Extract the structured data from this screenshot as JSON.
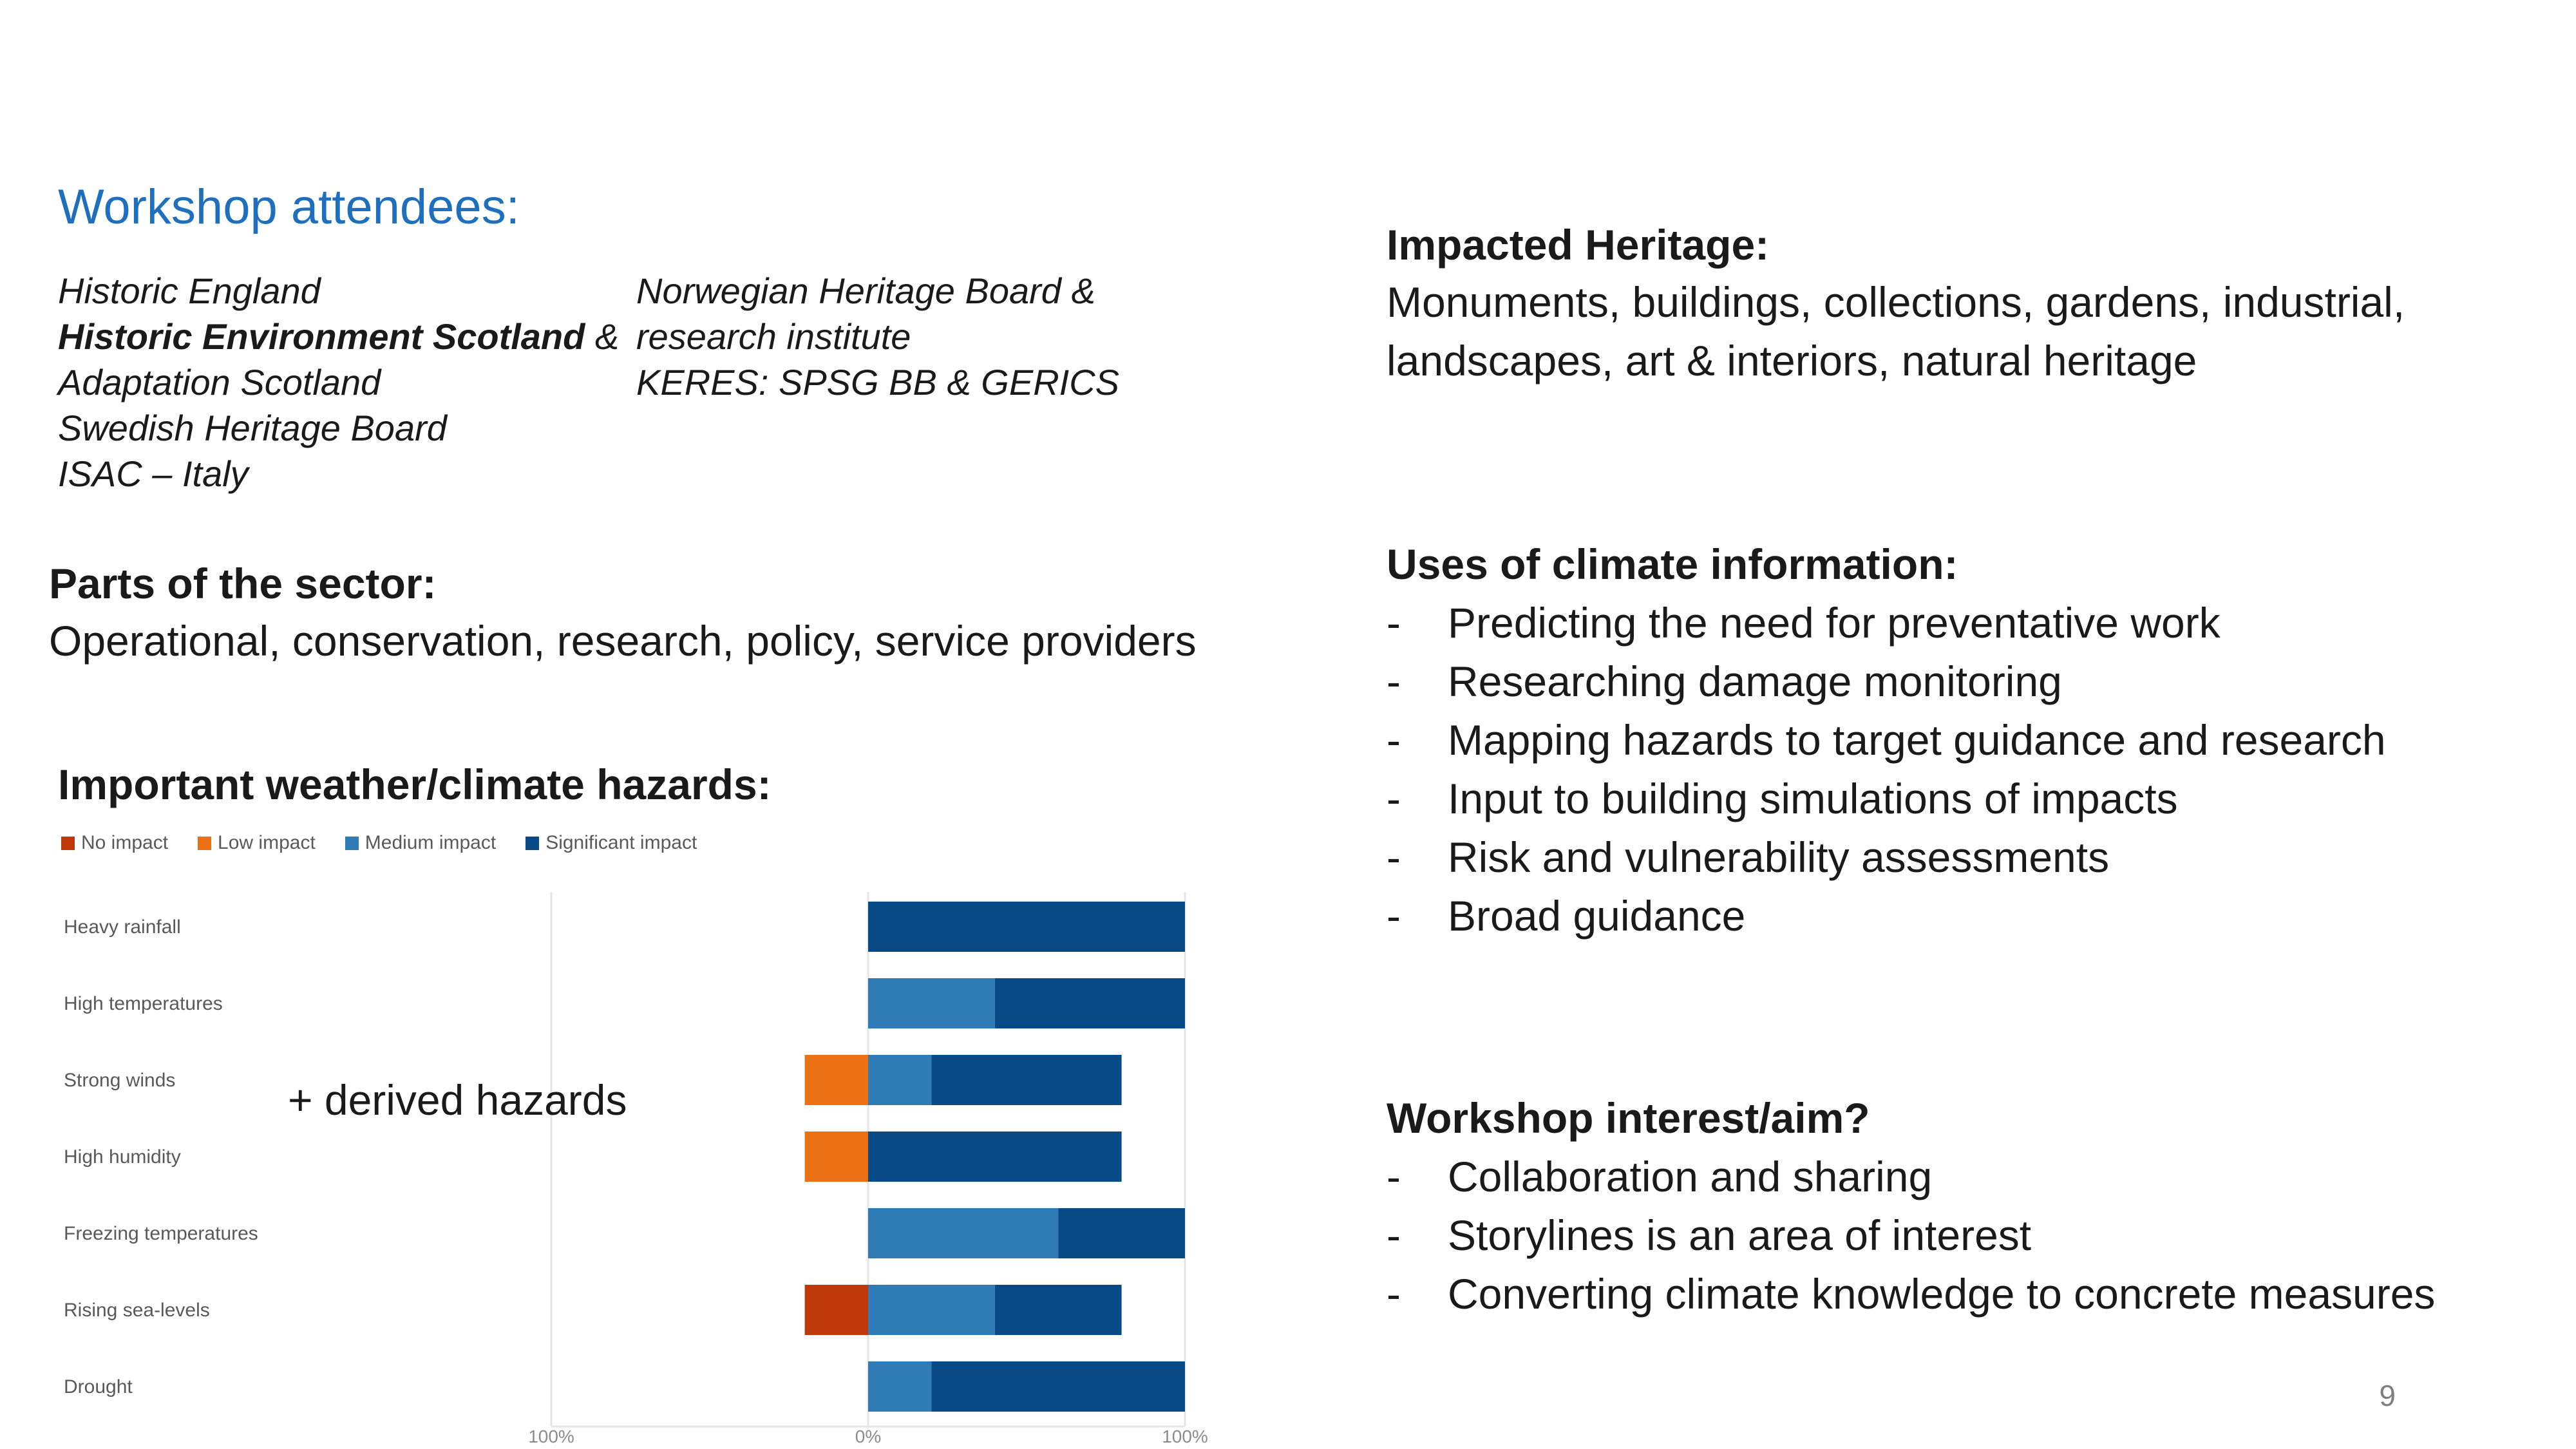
{
  "attendees": {
    "title": "Workshop attendees:",
    "col1": {
      "line1": "Historic England",
      "line2_bold": "Historic Environment Scotland",
      "line2_rest": " &",
      "line3": "Adaptation Scotland",
      "line4": "Swedish Heritage Board",
      "line5": "ISAC – Italy"
    },
    "col2": {
      "line1": "Norwegian Heritage Board &",
      "line2": "research institute",
      "line3": "KERES: SPSG BB & GERICS"
    }
  },
  "sector": {
    "heading": "Parts of the sector:",
    "text": "Operational, conservation, research, policy, service providers"
  },
  "hazards": {
    "heading": "Important weather/climate hazards:",
    "annotation": "+ derived hazards"
  },
  "impacted": {
    "heading": "Impacted Heritage:",
    "line1": "Monuments, buildings, collections, gardens, industrial,",
    "line2": "landscapes, art & interiors, natural heritage"
  },
  "uses": {
    "heading": "Uses of climate information:",
    "items": [
      "Predicting the need for preventative work",
      "Researching damage monitoring",
      "Mapping hazards to target guidance and research",
      "Input to building simulations of impacts",
      "Risk and vulnerability assessments",
      "Broad guidance"
    ]
  },
  "aim": {
    "heading": "Workshop interest/aim?",
    "items": [
      "Collaboration and sharing",
      "Storylines is an area of interest",
      "Converting climate knowledge to concrete measures"
    ]
  },
  "bullet_dash": "-",
  "page_number": "9",
  "chart_data": {
    "type": "bar",
    "orientation": "horizontal",
    "stacked": "diverging",
    "categories": [
      "Heavy rainfall",
      "High temperatures",
      "Strong winds",
      "High humidity",
      "Freezing temperatures",
      "Rising sea-levels",
      "Drought"
    ],
    "series": [
      {
        "name": "No impact",
        "color": "#c0390b",
        "values": [
          0,
          0,
          0,
          0,
          0,
          20,
          0
        ]
      },
      {
        "name": "Low impact",
        "color": "#ec7014",
        "values": [
          0,
          0,
          20,
          20,
          0,
          0,
          0
        ]
      },
      {
        "name": "Medium impact",
        "color": "#2e7bb6",
        "values": [
          0,
          40,
          20,
          0,
          60,
          40,
          20
        ]
      },
      {
        "name": "Significant impact",
        "color": "#084a85",
        "values": [
          100,
          60,
          60,
          80,
          40,
          40,
          80
        ]
      }
    ],
    "negative_series": [
      "No impact",
      "Low impact"
    ],
    "xlim": [
      -100,
      100
    ],
    "xtick_labels": [
      "100%",
      "0%",
      "100%"
    ],
    "legend_position": "top-left",
    "grid": false
  }
}
